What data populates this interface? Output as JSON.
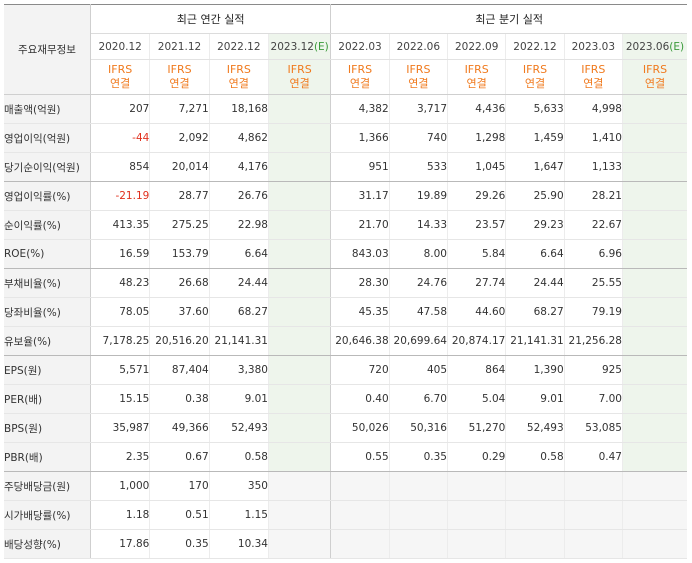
{
  "header": {
    "row_label": "주요재무정보",
    "annual_title": "최근 연간 실적",
    "quarter_title": "최근 분기 실적",
    "annual_periods": [
      "2020.12",
      "2021.12",
      "2022.12",
      "2023.12"
    ],
    "quarter_periods": [
      "2022.03",
      "2022.06",
      "2022.09",
      "2022.12",
      "2023.03",
      "2023.06"
    ],
    "estimate_mark": "(E)",
    "ifrs_line1": "IFRS",
    "ifrs_line2": "연결"
  },
  "rows": [
    {
      "label": "매출액(억원)",
      "values": [
        "207",
        "7,271",
        "18,168",
        "",
        "4,382",
        "3,717",
        "4,436",
        "5,633",
        "4,998",
        ""
      ]
    },
    {
      "label": "영업이익(억원)",
      "values": [
        "-44",
        "2,092",
        "4,862",
        "",
        "1,366",
        "740",
        "1,298",
        "1,459",
        "1,410",
        ""
      ]
    },
    {
      "label": "당기순이익(억원)",
      "values": [
        "854",
        "20,014",
        "4,176",
        "",
        "951",
        "533",
        "1,045",
        "1,647",
        "1,133",
        ""
      ]
    },
    {
      "label": "영업이익률(%)",
      "values": [
        "-21.19",
        "28.77",
        "26.76",
        "",
        "31.17",
        "19.89",
        "29.26",
        "25.90",
        "28.21",
        ""
      ]
    },
    {
      "label": "순이익률(%)",
      "values": [
        "413.35",
        "275.25",
        "22.98",
        "",
        "21.70",
        "14.33",
        "23.57",
        "29.23",
        "22.67",
        ""
      ]
    },
    {
      "label": "ROE(%)",
      "values": [
        "16.59",
        "153.79",
        "6.64",
        "",
        "843.03",
        "8.00",
        "5.84",
        "6.64",
        "6.96",
        ""
      ]
    },
    {
      "label": "부채비율(%)",
      "values": [
        "48.23",
        "26.68",
        "24.44",
        "",
        "28.30",
        "24.76",
        "27.74",
        "24.44",
        "25.55",
        ""
      ]
    },
    {
      "label": "당좌비율(%)",
      "values": [
        "78.05",
        "37.60",
        "68.27",
        "",
        "45.35",
        "47.58",
        "44.60",
        "68.27",
        "79.19",
        ""
      ]
    },
    {
      "label": "유보율(%)",
      "values": [
        "7,178.25",
        "20,516.20",
        "21,141.31",
        "",
        "20,646.38",
        "20,699.64",
        "20,874.17",
        "21,141.31",
        "21,256.28",
        ""
      ]
    },
    {
      "label": "EPS(원)",
      "values": [
        "5,571",
        "87,404",
        "3,380",
        "",
        "720",
        "405",
        "864",
        "1,390",
        "925",
        ""
      ]
    },
    {
      "label": "PER(배)",
      "values": [
        "15.15",
        "0.38",
        "9.01",
        "",
        "0.40",
        "6.70",
        "5.04",
        "9.01",
        "7.00",
        ""
      ]
    },
    {
      "label": "BPS(원)",
      "values": [
        "35,987",
        "49,366",
        "52,493",
        "",
        "50,026",
        "50,316",
        "51,270",
        "52,493",
        "53,085",
        ""
      ]
    },
    {
      "label": "PBR(배)",
      "values": [
        "2.35",
        "0.67",
        "0.58",
        "",
        "0.55",
        "0.35",
        "0.29",
        "0.58",
        "0.47",
        ""
      ]
    },
    {
      "label": "주당배당금(원)",
      "values": [
        "1,000",
        "170",
        "350",
        "",
        "",
        "",
        "",
        "",
        "",
        ""
      ]
    },
    {
      "label": "시가배당률(%)",
      "values": [
        "1.18",
        "0.51",
        "1.15",
        "",
        "",
        "",
        "",
        "",
        "",
        ""
      ]
    },
    {
      "label": "배당성향(%)",
      "values": [
        "17.86",
        "0.35",
        "10.34",
        "",
        "",
        "",
        "",
        "",
        "",
        ""
      ]
    }
  ],
  "colors": {
    "negative": "#e0301e",
    "ifrs": "#f07a1e",
    "estimate_bg": "#eef5ec",
    "estimate_mark": "#3a9a3a"
  }
}
